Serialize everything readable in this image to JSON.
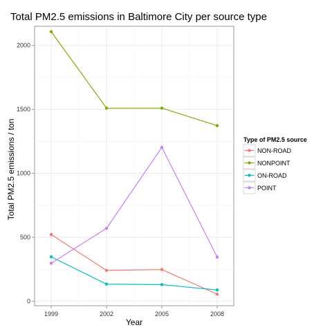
{
  "chart_data": {
    "type": "line",
    "title": "Total PM2.5 emissions in Baltimore City per source type",
    "xlabel": "Year",
    "ylabel": "Total PM2.5 emissions / ton",
    "x": [
      1999,
      2002,
      2005,
      2008
    ],
    "x_tick_labels": [
      "1999",
      "2002",
      "2005",
      "2008"
    ],
    "y_ticks": [
      0,
      500,
      1000,
      1500,
      2000
    ],
    "y_tick_labels": [
      "0",
      "500",
      "1000",
      "1500",
      "2000"
    ],
    "ylim": [
      -35,
      2150
    ],
    "grid": true,
    "legend": {
      "title": "Type of PM2.5 source",
      "placement": "right"
    },
    "series": [
      {
        "name": "NON-ROAD",
        "color": "#F8766D",
        "values": [
          522,
          241,
          248,
          55
        ]
      },
      {
        "name": "NONPOINT",
        "color": "#7CAE00",
        "values": [
          2108,
          1510,
          1510,
          1373
        ]
      },
      {
        "name": "ON-ROAD",
        "color": "#00BFC4",
        "values": [
          347,
          134,
          130,
          88
        ]
      },
      {
        "name": "POINT",
        "color": "#C77CFF",
        "values": [
          297,
          570,
          1203,
          345
        ]
      }
    ]
  }
}
